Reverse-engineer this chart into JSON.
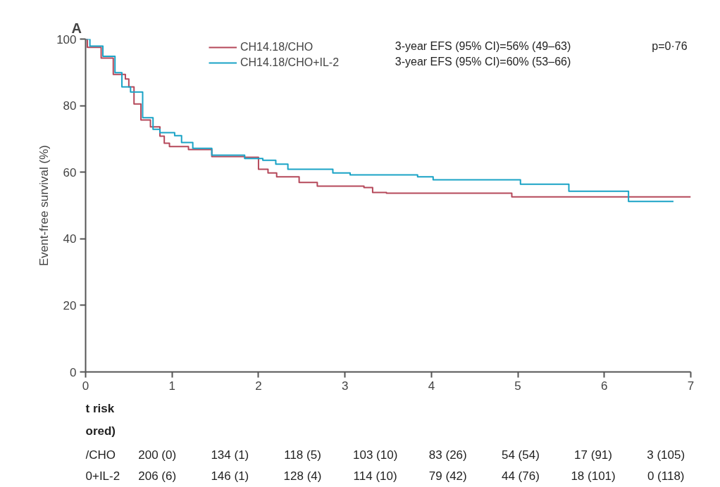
{
  "chart_data": {
    "type": "step",
    "title": "A",
    "ylabel": "Event-free survival (%)",
    "xlim": [
      0,
      7
    ],
    "ylim": [
      0,
      100
    ],
    "xticks": [
      0,
      1,
      2,
      3,
      4,
      5,
      6,
      7
    ],
    "yticks": [
      0,
      20,
      40,
      60,
      80,
      100
    ],
    "grid": false,
    "legend": "top",
    "marker": "none",
    "line_style": "solid",
    "series": [
      {
        "name": "CH14.18/CHO",
        "color": "#b5485a",
        "x": [
          0,
          0.02,
          0.18,
          0.32,
          0.46,
          0.5,
          0.56,
          0.64,
          0.75,
          0.86,
          0.91,
          0.97,
          1.19,
          1.46,
          1.84,
          2.0,
          2.11,
          2.21,
          2.47,
          2.68,
          3.22,
          3.32,
          3.48,
          4.93,
          7.0
        ],
        "values": [
          100,
          97.5,
          94.3,
          89.4,
          88,
          85.6,
          80.5,
          75.7,
          73.6,
          70.8,
          68.7,
          67.7,
          66.8,
          64.7,
          64.5,
          60.9,
          59.8,
          58.6,
          56.9,
          55.8,
          55.4,
          53.9,
          53.7,
          52.6,
          52.6
        ]
      },
      {
        "name": "CH14.18/CHO+IL-2",
        "color": "#1aa3c6",
        "x": [
          0,
          0.05,
          0.2,
          0.34,
          0.42,
          0.52,
          0.66,
          0.78,
          0.86,
          1.03,
          1.11,
          1.24,
          1.46,
          1.84,
          2.05,
          2.2,
          2.34,
          2.86,
          3.06,
          3.84,
          4.02,
          5.03,
          5.59,
          6.28,
          6.8
        ],
        "values": [
          100,
          97.9,
          94.8,
          89.9,
          85.6,
          84.1,
          76.4,
          72.9,
          71.9,
          71.0,
          68.9,
          67.2,
          65.1,
          64.1,
          63.6,
          62.4,
          60.9,
          59.8,
          59.2,
          58.6,
          57.7,
          56.4,
          54.3,
          51.2,
          51.2
        ]
      }
    ],
    "annotations": [
      "3-year EFS (95% CI)=56% (49–63)",
      "3-year EFS (95% CI)=60% (53–66)",
      "p=0·76",
      "t risk",
      "ored)",
      "/CHO",
      "200 (0)",
      "134 (1)",
      "118 (5)",
      "103 (10)",
      "83 (26)",
      "54 (54)",
      "17 (91)",
      "3 (105)",
      "0+IL-2",
      "206 (6)",
      "146 (1)",
      "128 (4)",
      "114 (10)",
      "79 (42)",
      "44 (76)",
      "18 (101)",
      "0 (118)"
    ]
  }
}
